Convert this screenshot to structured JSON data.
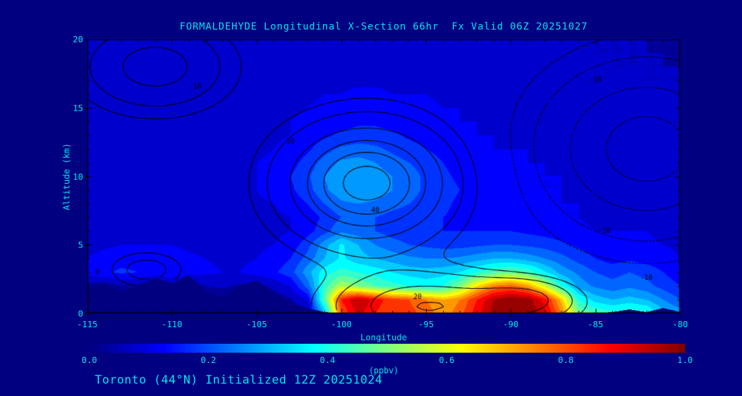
{
  "page": {
    "background_color": "#000080",
    "text_color": "#00e5ee",
    "footer": "Toronto (44°N) Initialized 12Z 20251024"
  },
  "chart_data": {
    "type": "heatmap",
    "title": "FORMALDEHYDE Longitudinal X-Section 66hr  Fx Valid 06Z 20251027",
    "xlabel": "Longitude",
    "ylabel": "Altitude (km)",
    "units_label": "(ppbv)",
    "x_range": [
      -115,
      -80
    ],
    "y_range": [
      0,
      20
    ],
    "x_ticks": [
      -115,
      -110,
      -105,
      -100,
      -95,
      -90,
      -85,
      -80
    ],
    "y_ticks": [
      0,
      5,
      10,
      15,
      20
    ],
    "colorbar": {
      "min": 0.0,
      "max": 1.0,
      "ticks": [
        "0.0",
        "0.2",
        "0.4",
        "0.6",
        "0.8",
        "1.0"
      ],
      "label": "(ppbv)",
      "colormap": "jet",
      "fill_step": 0.05
    },
    "terrain_km": [
      1.8,
      2.2,
      1.6,
      2.0,
      2.6,
      2.2,
      2.8,
      1.6,
      1.2,
      2.0,
      2.4,
      1.5,
      0.8,
      0.4,
      0.1,
      0,
      0,
      0,
      0,
      0,
      0,
      0,
      0,
      0,
      0,
      0,
      0,
      0,
      0,
      0,
      0,
      0.1,
      0.3,
      0.1,
      0.4,
      0.1
    ],
    "grid": {
      "lon_start": -115,
      "lon_step": 1,
      "alt_start": 0,
      "alt_step": 1,
      "values": [
        [
          0,
          0,
          0,
          0,
          0,
          0,
          0,
          0,
          0,
          0,
          0,
          0,
          0.02,
          0.08,
          0.3,
          0.8,
          0.92,
          0.85,
          0.8,
          0.82,
          0.78,
          0.72,
          0.78,
          0.88,
          0.97,
          1,
          1,
          0.92,
          0.75,
          0.5,
          0.45,
          0.42,
          0.45,
          0.42,
          0.32,
          0.28
        ],
        [
          0,
          0,
          0,
          0,
          0,
          0,
          0,
          0,
          0,
          0,
          0,
          0.02,
          0.04,
          0.1,
          0.45,
          0.85,
          0.95,
          0.88,
          0.82,
          0.8,
          0.75,
          0.7,
          0.75,
          0.85,
          0.95,
          1,
          0.98,
          0.88,
          0.68,
          0.4,
          0.33,
          0.3,
          0.32,
          0.3,
          0.25,
          0.2
        ],
        [
          0.03,
          0.02,
          0.04,
          0.03,
          0.02,
          0.03,
          0.02,
          0.05,
          0.06,
          0.04,
          0.03,
          0.06,
          0.1,
          0.22,
          0.42,
          0.55,
          0.5,
          0.45,
          0.42,
          0.4,
          0.38,
          0.4,
          0.5,
          0.65,
          0.75,
          0.78,
          0.72,
          0.58,
          0.4,
          0.28,
          0.24,
          0.22,
          0.24,
          0.22,
          0.18,
          0.15
        ],
        [
          0.12,
          0.14,
          0.16,
          0.15,
          0.12,
          0.15,
          0.12,
          0.11,
          0.1,
          0.1,
          0.12,
          0.14,
          0.18,
          0.28,
          0.38,
          0.42,
          0.4,
          0.38,
          0.35,
          0.33,
          0.32,
          0.33,
          0.35,
          0.4,
          0.45,
          0.48,
          0.44,
          0.36,
          0.28,
          0.24,
          0.2,
          0.18,
          0.2,
          0.18,
          0.15,
          0.12
        ],
        [
          0.1,
          0.12,
          0.13,
          0.13,
          0.12,
          0.12,
          0.11,
          0.1,
          0.09,
          0.09,
          0.1,
          0.12,
          0.15,
          0.22,
          0.3,
          0.36,
          0.32,
          0.3,
          0.28,
          0.26,
          0.25,
          0.25,
          0.26,
          0.28,
          0.3,
          0.3,
          0.28,
          0.25,
          0.22,
          0.18,
          0.15,
          0.13,
          0.14,
          0.13,
          0.12,
          0.1
        ],
        [
          0.08,
          0.09,
          0.1,
          0.1,
          0.1,
          0.1,
          0.09,
          0.08,
          0.08,
          0.08,
          0.09,
          0.1,
          0.12,
          0.18,
          0.28,
          0.36,
          0.3,
          0.25,
          0.22,
          0.2,
          0.19,
          0.18,
          0.18,
          0.19,
          0.2,
          0.2,
          0.19,
          0.18,
          0.16,
          0.14,
          0.12,
          0.11,
          0.11,
          0.11,
          0.1,
          0.09
        ],
        [
          0.07,
          0.08,
          0.08,
          0.09,
          0.09,
          0.09,
          0.08,
          0.08,
          0.07,
          0.07,
          0.08,
          0.09,
          0.1,
          0.13,
          0.18,
          0.24,
          0.22,
          0.2,
          0.18,
          0.17,
          0.16,
          0.15,
          0.15,
          0.15,
          0.15,
          0.15,
          0.14,
          0.13,
          0.12,
          0.11,
          0.1,
          0.1,
          0.1,
          0.1,
          0.09,
          0.08
        ],
        [
          0.07,
          0.07,
          0.08,
          0.08,
          0.08,
          0.08,
          0.08,
          0.07,
          0.07,
          0.07,
          0.08,
          0.09,
          0.1,
          0.12,
          0.16,
          0.2,
          0.21,
          0.2,
          0.18,
          0.17,
          0.16,
          0.15,
          0.14,
          0.13,
          0.13,
          0.12,
          0.12,
          0.11,
          0.1,
          0.1,
          0.09,
          0.09,
          0.09,
          0.09,
          0.08,
          0.08
        ],
        [
          0.08,
          0.08,
          0.08,
          0.08,
          0.08,
          0.09,
          0.09,
          0.08,
          0.08,
          0.08,
          0.09,
          0.1,
          0.12,
          0.15,
          0.2,
          0.24,
          0.25,
          0.24,
          0.22,
          0.2,
          0.18,
          0.16,
          0.14,
          0.13,
          0.12,
          0.12,
          0.11,
          0.11,
          0.1,
          0.1,
          0.09,
          0.09,
          0.09,
          0.09,
          0.08,
          0.08
        ],
        [
          0.08,
          0.08,
          0.08,
          0.09,
          0.09,
          0.09,
          0.09,
          0.09,
          0.09,
          0.09,
          0.1,
          0.12,
          0.14,
          0.18,
          0.24,
          0.28,
          0.3,
          0.28,
          0.25,
          0.22,
          0.19,
          0.17,
          0.15,
          0.13,
          0.12,
          0.12,
          0.11,
          0.1,
          0.1,
          0.09,
          0.09,
          0.09,
          0.09,
          0.08,
          0.08,
          0.08
        ],
        [
          0.08,
          0.08,
          0.08,
          0.09,
          0.09,
          0.09,
          0.09,
          0.09,
          0.09,
          0.09,
          0.1,
          0.12,
          0.15,
          0.19,
          0.25,
          0.29,
          0.3,
          0.28,
          0.25,
          0.22,
          0.19,
          0.16,
          0.14,
          0.13,
          0.12,
          0.11,
          0.11,
          0.1,
          0.1,
          0.09,
          0.09,
          0.08,
          0.08,
          0.08,
          0.08,
          0.08
        ],
        [
          0.07,
          0.08,
          0.08,
          0.08,
          0.08,
          0.09,
          0.09,
          0.09,
          0.09,
          0.09,
          0.1,
          0.11,
          0.13,
          0.17,
          0.22,
          0.26,
          0.27,
          0.25,
          0.22,
          0.2,
          0.18,
          0.15,
          0.13,
          0.12,
          0.11,
          0.11,
          0.1,
          0.1,
          0.09,
          0.09,
          0.08,
          0.08,
          0.08,
          0.08,
          0.07,
          0.07
        ],
        [
          0.07,
          0.07,
          0.08,
          0.08,
          0.08,
          0.08,
          0.08,
          0.08,
          0.08,
          0.09,
          0.09,
          0.1,
          0.12,
          0.14,
          0.18,
          0.21,
          0.22,
          0.21,
          0.19,
          0.17,
          0.15,
          0.13,
          0.12,
          0.11,
          0.1,
          0.1,
          0.1,
          0.09,
          0.09,
          0.08,
          0.08,
          0.08,
          0.07,
          0.07,
          0.07,
          0.07
        ],
        [
          0.07,
          0.07,
          0.07,
          0.08,
          0.08,
          0.08,
          0.08,
          0.08,
          0.08,
          0.08,
          0.09,
          0.09,
          0.1,
          0.12,
          0.14,
          0.16,
          0.17,
          0.17,
          0.16,
          0.14,
          0.13,
          0.12,
          0.11,
          0.1,
          0.1,
          0.09,
          0.09,
          0.09,
          0.08,
          0.08,
          0.08,
          0.07,
          0.07,
          0.07,
          0.07,
          0.06
        ],
        [
          0.08,
          0.08,
          0.08,
          0.08,
          0.08,
          0.08,
          0.08,
          0.08,
          0.08,
          0.08,
          0.08,
          0.09,
          0.1,
          0.11,
          0.12,
          0.13,
          0.14,
          0.14,
          0.13,
          0.12,
          0.12,
          0.11,
          0.1,
          0.1,
          0.09,
          0.09,
          0.08,
          0.08,
          0.08,
          0.08,
          0.07,
          0.07,
          0.07,
          0.07,
          0.06,
          0.06
        ],
        [
          0.08,
          0.08,
          0.09,
          0.09,
          0.09,
          0.09,
          0.09,
          0.08,
          0.08,
          0.08,
          0.08,
          0.09,
          0.09,
          0.1,
          0.11,
          0.12,
          0.12,
          0.12,
          0.12,
          0.11,
          0.11,
          0.1,
          0.1,
          0.09,
          0.09,
          0.08,
          0.08,
          0.08,
          0.07,
          0.07,
          0.07,
          0.07,
          0.06,
          0.06,
          0.06,
          0.06
        ],
        [
          0.08,
          0.08,
          0.09,
          0.09,
          0.09,
          0.09,
          0.08,
          0.08,
          0.08,
          0.08,
          0.08,
          0.08,
          0.09,
          0.09,
          0.1,
          0.1,
          0.11,
          0.11,
          0.1,
          0.1,
          0.1,
          0.09,
          0.09,
          0.09,
          0.08,
          0.08,
          0.08,
          0.07,
          0.07,
          0.07,
          0.06,
          0.06,
          0.06,
          0.06,
          0.06,
          0.05
        ],
        [
          0.07,
          0.08,
          0.08,
          0.08,
          0.08,
          0.08,
          0.08,
          0.08,
          0.08,
          0.07,
          0.07,
          0.08,
          0.08,
          0.08,
          0.09,
          0.09,
          0.09,
          0.09,
          0.09,
          0.09,
          0.09,
          0.09,
          0.08,
          0.08,
          0.08,
          0.07,
          0.07,
          0.07,
          0.07,
          0.06,
          0.06,
          0.06,
          0.06,
          0.05,
          0.05,
          0.05
        ],
        [
          0.07,
          0.07,
          0.08,
          0.08,
          0.08,
          0.08,
          0.08,
          0.07,
          0.07,
          0.07,
          0.07,
          0.07,
          0.08,
          0.08,
          0.08,
          0.08,
          0.09,
          0.09,
          0.08,
          0.08,
          0.08,
          0.08,
          0.08,
          0.08,
          0.07,
          0.07,
          0.07,
          0.07,
          0.06,
          0.06,
          0.06,
          0.05,
          0.05,
          0.05,
          0.05,
          0.05
        ],
        [
          0.07,
          0.07,
          0.07,
          0.07,
          0.08,
          0.08,
          0.07,
          0.07,
          0.07,
          0.07,
          0.07,
          0.07,
          0.07,
          0.07,
          0.08,
          0.08,
          0.08,
          0.08,
          0.08,
          0.08,
          0.08,
          0.08,
          0.07,
          0.07,
          0.07,
          0.07,
          0.06,
          0.06,
          0.06,
          0.06,
          0.05,
          0.05,
          0.05,
          0.05,
          0.05,
          0.04
        ],
        [
          0.07,
          0.07,
          0.07,
          0.07,
          0.07,
          0.07,
          0.07,
          0.07,
          0.07,
          0.07,
          0.07,
          0.07,
          0.07,
          0.07,
          0.07,
          0.08,
          0.08,
          0.08,
          0.08,
          0.07,
          0.07,
          0.07,
          0.07,
          0.07,
          0.07,
          0.06,
          0.06,
          0.06,
          0.06,
          0.05,
          0.05,
          0.05,
          0.05,
          0.05,
          0.04,
          0.04
        ]
      ]
    },
    "overlay_contours": {
      "line_color": "#000000",
      "levels": [
        -30,
        -20,
        -10,
        -5,
        5,
        10,
        20,
        30,
        40,
        50
      ],
      "negative_style": "dashed",
      "components": [
        {
          "amp": 55,
          "lon": -98.5,
          "slon": 4.5,
          "alt": 9.5,
          "salt": 4.0
        },
        {
          "amp": 30,
          "lon": -95.0,
          "slon": 5.0,
          "alt": 0.5,
          "salt": 2.2
        },
        {
          "amp": 25,
          "lon": -111.0,
          "slon": 4.0,
          "alt": 18.0,
          "salt": 3.0
        },
        {
          "amp": -35,
          "lon": -82.0,
          "slon": 6.0,
          "alt": 12.0,
          "salt": 6.0
        },
        {
          "amp": 14,
          "lon": -111.5,
          "slon": 2.0,
          "alt": 3.2,
          "salt": 1.2
        },
        {
          "amp": 20,
          "lon": -89.0,
          "slon": 3.0,
          "alt": 1.0,
          "salt": 1.5
        }
      ],
      "labels": [
        {
          "text": "40",
          "lon": -98.0,
          "alt": 7.5
        },
        {
          "text": "20",
          "lon": -95.5,
          "alt": 1.2
        },
        {
          "text": "10",
          "lon": -103.0,
          "alt": 12.5
        },
        {
          "text": "10",
          "lon": -108.5,
          "alt": 16.5
        },
        {
          "text": "-10",
          "lon": -85.0,
          "alt": 17.0
        },
        {
          "text": "-10",
          "lon": -84.5,
          "alt": 6.0
        },
        {
          "text": "-10",
          "lon": -82.0,
          "alt": 2.6
        },
        {
          "text": "0",
          "lon": -114.4,
          "alt": 3.0
        }
      ]
    }
  }
}
